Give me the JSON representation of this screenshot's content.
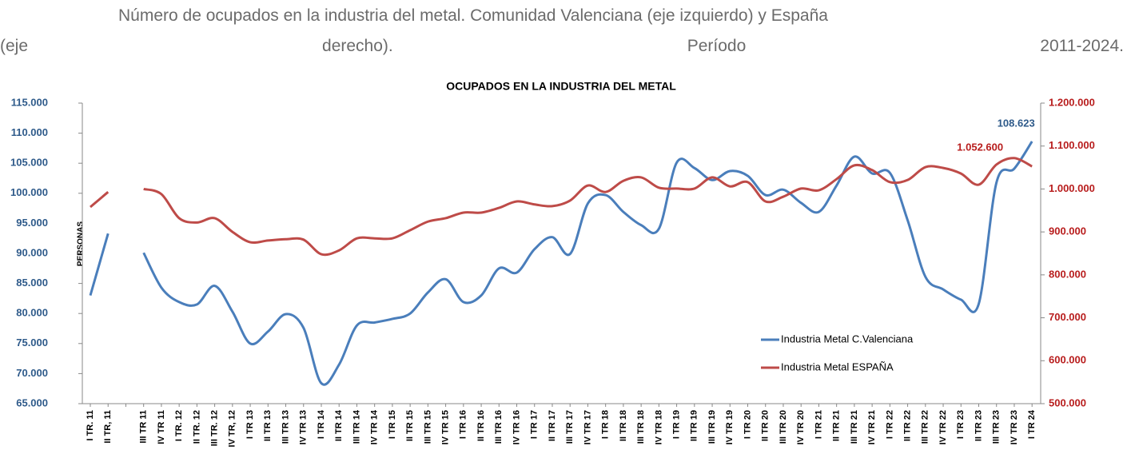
{
  "caption_lines": [
    "Número de ocupados en la industria del metal. Comunidad Valenciana (eje izquierdo) y España",
    "(eje derecho). Período 2011-2024."
  ],
  "chart_data": {
    "type": "line",
    "title": "OCUPADOS EN LA INDUSTRIA DEL METAL",
    "y_label": "PERSONAS",
    "categories": [
      "I TR.  11",
      "II TR, 11",
      null,
      "III TR 11",
      "IV TR 11",
      "I TR.  12",
      "II TR. 12",
      "III TR. 12",
      "IV TR, 12",
      "I TR 13",
      "II TR 13",
      "III TR 13",
      "IV TR 13",
      "I TR 14",
      "II TR 14",
      "III TR 14",
      "IV TR 14",
      "I TR 15",
      "II TR 15",
      "III TR 15",
      "IV TR 15",
      "I TR 16",
      "II TR 16",
      "III TR 16",
      "IV TR 16",
      "I TR 17",
      "II TR 17",
      "III TR 17",
      "IV TR 17",
      "I TR 18",
      "II TR 18",
      "III TR 18",
      "IV TR 18",
      "I TR 19",
      "II TR 19",
      "III TR 19",
      "IV TR 19",
      "I TR 20",
      "II TR 20",
      "III TR 20",
      "IV TR 20",
      "I TR 21",
      "II TR 21",
      "III TR 21",
      "IV TR 21",
      "I TR 22",
      "II TR 22",
      "III TR 22",
      "IV TR 22",
      "I TR 23",
      "II TR 23",
      "III TR 23",
      "IV TR 23",
      "I TR 24"
    ],
    "series": [
      {
        "name": "Industria Metal C.Valenciana",
        "color": "#4a7ebb",
        "axis": "y",
        "values": [
          83000,
          93300,
          null,
          90100,
          84300,
          81900,
          81500,
          84600,
          80300,
          75000,
          77000,
          79900,
          77600,
          68400,
          71500,
          78000,
          78500,
          79100,
          80000,
          83500,
          85700,
          81900,
          83000,
          87500,
          86800,
          90700,
          92700,
          89900,
          98300,
          99700,
          96900,
          94700,
          94100,
          105100,
          104200,
          102200,
          103700,
          102900,
          99700,
          100600,
          98400,
          96900,
          101300,
          106100,
          103300,
          103400,
          95500,
          86100,
          84000,
          82300,
          81600,
          101800,
          104100,
          108623
        ],
        "value_labels": [
          null,
          null,
          null,
          null,
          null,
          null,
          null,
          null,
          null,
          null,
          null,
          null,
          null,
          null,
          null,
          null,
          null,
          null,
          null,
          null,
          null,
          null,
          null,
          null,
          null,
          null,
          null,
          null,
          null,
          null,
          null,
          null,
          null,
          null,
          null,
          null,
          null,
          null,
          null,
          null,
          null,
          null,
          null,
          null,
          null,
          null,
          null,
          null,
          null,
          null,
          null,
          null,
          null,
          "108.623"
        ]
      },
      {
        "name": "Industria Metal ESPAÑA",
        "color": "#be4b48",
        "axis": "y2",
        "values": [
          958000,
          993000,
          null,
          1000000,
          988000,
          932000,
          922000,
          932000,
          900000,
          876000,
          880000,
          883000,
          882000,
          848000,
          857000,
          885000,
          885000,
          885000,
          904000,
          924000,
          932000,
          945000,
          945000,
          956000,
          971000,
          964000,
          960000,
          973000,
          1008000,
          993000,
          1019000,
          1027000,
          1003000,
          1001000,
          1001000,
          1027000,
          1006000,
          1016000,
          971000,
          982000,
          1001000,
          997000,
          1023000,
          1055000,
          1044000,
          1016000,
          1021000,
          1051000,
          1049000,
          1036000,
          1010000,
          1057000,
          1072000,
          1052600
        ],
        "value_labels": [
          null,
          null,
          null,
          null,
          null,
          null,
          null,
          null,
          null,
          null,
          null,
          null,
          null,
          null,
          null,
          null,
          null,
          null,
          null,
          null,
          null,
          null,
          null,
          null,
          null,
          null,
          null,
          null,
          null,
          null,
          null,
          null,
          null,
          null,
          null,
          null,
          null,
          null,
          null,
          null,
          null,
          null,
          null,
          null,
          null,
          null,
          null,
          null,
          null,
          null,
          null,
          null,
          null,
          "1.052.600"
        ]
      }
    ],
    "ylim": [
      65000,
      115000
    ],
    "yticks": [
      {
        "value": 65000,
        "label": "65.000"
      },
      {
        "value": 70000,
        "label": "70.000"
      },
      {
        "value": 75000,
        "label": "75.000"
      },
      {
        "value": 80000,
        "label": "80.000"
      },
      {
        "value": 85000,
        "label": "85.000"
      },
      {
        "value": 90000,
        "label": "90.000"
      },
      {
        "value": 95000,
        "label": "95.000"
      },
      {
        "value": 100000,
        "label": "100.000"
      },
      {
        "value": 105000,
        "label": "105.000"
      },
      {
        "value": 110000,
        "label": "110.000"
      },
      {
        "value": 115000,
        "label": "115.000"
      }
    ],
    "y2lim": [
      500000,
      1200000
    ],
    "y2ticks": [
      {
        "value": 500000,
        "label": "500.000"
      },
      {
        "value": 600000,
        "label": "600.000"
      },
      {
        "value": 700000,
        "label": "700.000"
      },
      {
        "value": 800000,
        "label": "800.000"
      },
      {
        "value": 900000,
        "label": "900.000"
      },
      {
        "value": 1000000,
        "label": "1.000.000"
      },
      {
        "value": 1100000,
        "label": "1.100.000"
      },
      {
        "value": 1200000,
        "label": "1.200.000"
      }
    ],
    "legend": "lower right"
  }
}
